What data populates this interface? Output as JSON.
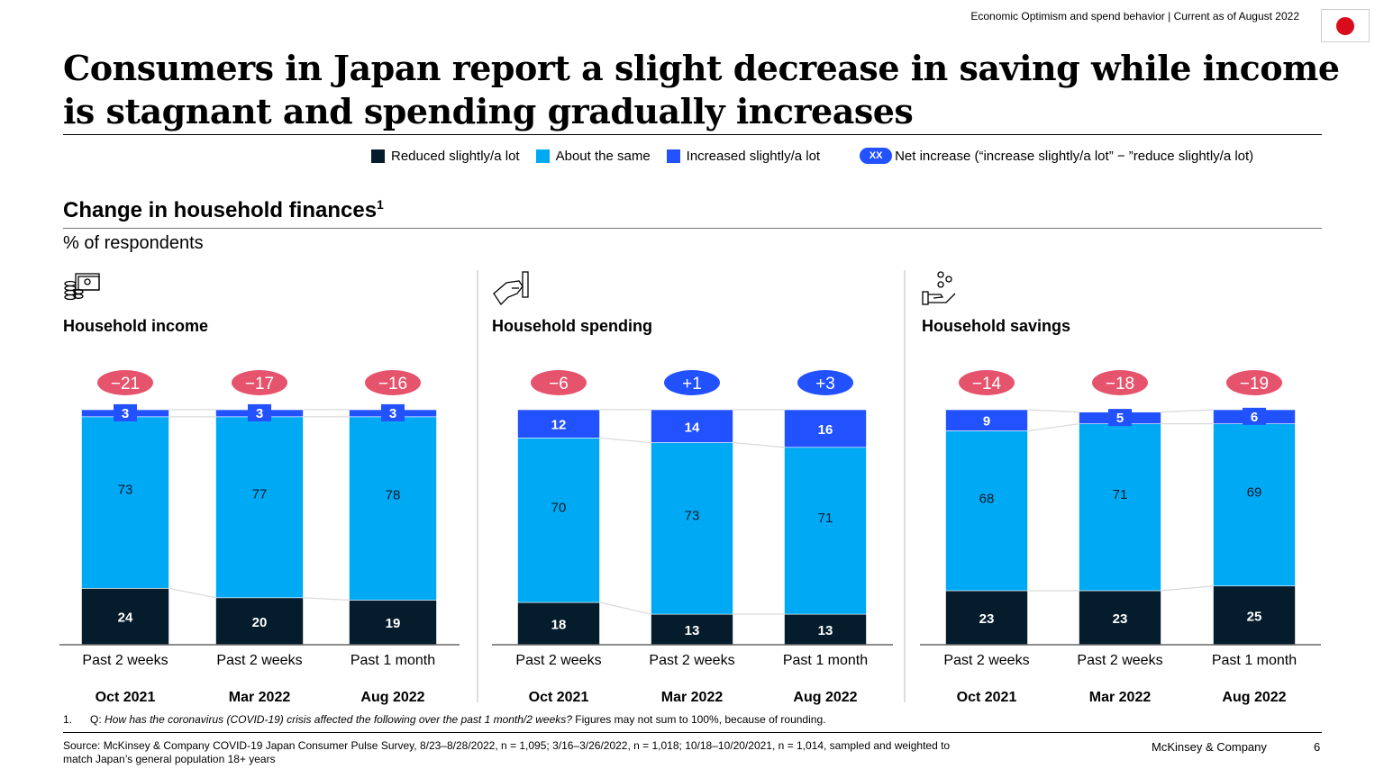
{
  "header": {
    "tracker": "Economic Optimism and spend behavior | Current as of August 2022",
    "flag_icon": "japan-flag-icon"
  },
  "title": "Consumers in Japan report a slight decrease in saving while income is stagnant and spending gradually increases",
  "legend": {
    "reduced": "Reduced slightly/a lot",
    "same": "About the same",
    "increased": "Increased slightly/a lot",
    "net_pill": "XX",
    "net": "Net increase (“increase slightly/a lot” − ”reduce slightly/a lot)"
  },
  "subtitle": "Change in household finances",
  "subtitle_sup": "1",
  "unit": "% of respondents",
  "colors": {
    "reduced": "#051c2c",
    "same": "#00a9f4",
    "increased": "#2251ff",
    "net_negative": "#e5546c",
    "net_positive": "#2251ff",
    "connector": "#d9d9d9"
  },
  "chart_data": [
    {
      "type": "bar",
      "stacked": true,
      "title": "Household income",
      "icon": "money-coins-icon",
      "ylim": [
        0,
        100
      ],
      "categories": [
        "Past 2 weeks",
        "Past 2 weeks",
        "Past 1 month"
      ],
      "periods": [
        "Oct 2021",
        "Mar 2022",
        "Aug 2022"
      ],
      "series": [
        {
          "name": "Reduced slightly/a lot",
          "values": [
            24,
            20,
            19
          ]
        },
        {
          "name": "About the same",
          "values": [
            73,
            77,
            78
          ]
        },
        {
          "name": "Increased slightly/a lot",
          "values": [
            3,
            3,
            3
          ]
        }
      ],
      "net": [
        "−21",
        "−17",
        "−16"
      ]
    },
    {
      "type": "bar",
      "stacked": true,
      "title": "Household spending",
      "icon": "hand-card-icon",
      "ylim": [
        0,
        100
      ],
      "categories": [
        "Past 2 weeks",
        "Past 2 weeks",
        "Past 1 month"
      ],
      "periods": [
        "Oct 2021",
        "Mar 2022",
        "Aug 2022"
      ],
      "series": [
        {
          "name": "Reduced slightly/a lot",
          "values": [
            18,
            13,
            13
          ]
        },
        {
          "name": "About the same",
          "values": [
            70,
            73,
            71
          ]
        },
        {
          "name": "Increased slightly/a lot",
          "values": [
            12,
            14,
            16
          ]
        }
      ],
      "net": [
        "−6",
        "+1",
        "+3"
      ]
    },
    {
      "type": "bar",
      "stacked": true,
      "title": "Household savings",
      "icon": "hand-coins-icon",
      "ylim": [
        0,
        100
      ],
      "categories": [
        "Past 2 weeks",
        "Past 2 weeks",
        "Past 1 month"
      ],
      "periods": [
        "Oct 2021",
        "Mar 2022",
        "Aug 2022"
      ],
      "series": [
        {
          "name": "Reduced slightly/a lot",
          "values": [
            23,
            23,
            25
          ]
        },
        {
          "name": "About the same",
          "values": [
            68,
            71,
            69
          ]
        },
        {
          "name": "Increased slightly/a lot",
          "values": [
            9,
            5,
            6
          ]
        }
      ],
      "net": [
        "−14",
        "−18",
        "−19"
      ]
    }
  ],
  "footnote": {
    "num": "1.",
    "q_label": "Q:",
    "question": "How has the coronavirus (COVID-19) crisis affected the following over the past 1 month/2 weeks?",
    "note": "Figures may not sum to 100%, because of rounding."
  },
  "source": "Source: McKinsey & Company COVID-19 Japan Consumer Pulse Survey, 8/23–8/28/2022, n = 1,095; 3/16–3/26/2022, n = 1,018; 10/18–10/20/2021, n = 1,014, sampled and weighted to match Japan’s general population 18+ years",
  "brand": "McKinsey & Company",
  "page_number": "6"
}
